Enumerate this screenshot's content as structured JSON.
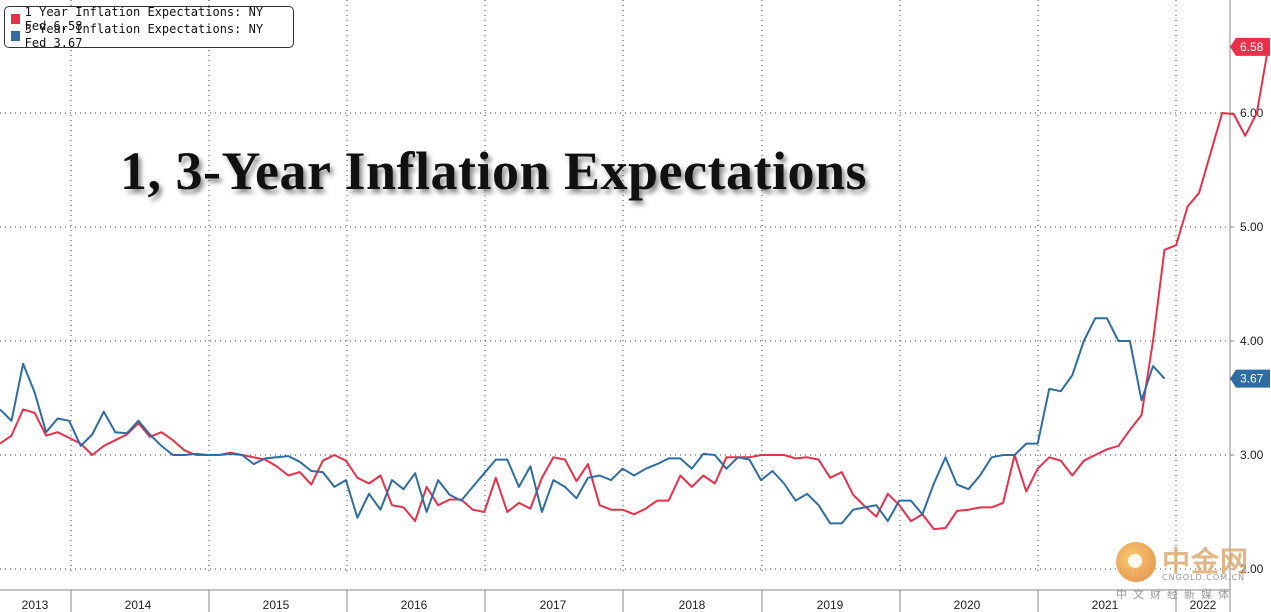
{
  "chart_data": {
    "type": "line",
    "title": "1, 3-Year Inflation Expectations",
    "xlabel": "",
    "ylabel": "",
    "x_start": "2013-06",
    "x_tick_labels": [
      "2013",
      "2014",
      "2015",
      "2016",
      "2017",
      "2018",
      "2019",
      "2020",
      "2021",
      "2022"
    ],
    "y_tick_labels": [
      "2.00",
      "3.00",
      "4.00",
      "5.00",
      "6.00"
    ],
    "ylim": [
      2.0,
      6.58
    ],
    "grid": true,
    "legend_position": "top-left",
    "series": [
      {
        "name": "1 Year Inflation Expectations: NY Fed",
        "last_label": "6.58",
        "color": "#e8304a",
        "values": [
          3.1,
          3.17,
          3.4,
          3.37,
          3.17,
          3.2,
          3.15,
          3.1,
          3.0,
          3.08,
          3.13,
          3.18,
          3.28,
          3.16,
          3.2,
          3.13,
          3.04,
          3.0,
          3.0,
          3.0,
          3.02,
          3.0,
          2.98,
          2.96,
          2.9,
          2.82,
          2.85,
          2.74,
          2.95,
          3.0,
          2.95,
          2.8,
          2.75,
          2.82,
          2.56,
          2.54,
          2.42,
          2.72,
          2.56,
          2.61,
          2.61,
          2.52,
          2.5,
          2.8,
          2.5,
          2.58,
          2.53,
          2.8,
          2.98,
          2.96,
          2.77,
          2.92,
          2.56,
          2.52,
          2.52,
          2.48,
          2.53,
          2.6,
          2.6,
          2.82,
          2.72,
          2.82,
          2.75,
          2.98,
          2.98,
          2.98,
          3.0,
          3.0,
          3.0,
          2.97,
          2.98,
          2.96,
          2.8,
          2.85,
          2.65,
          2.55,
          2.46,
          2.66,
          2.56,
          2.42,
          2.48,
          2.35,
          2.36,
          2.51,
          2.52,
          2.54,
          2.54,
          2.58,
          3.0,
          2.68,
          2.88,
          2.98,
          2.95,
          2.82,
          2.95,
          3.0,
          3.05,
          3.08,
          3.22,
          3.35,
          4.0,
          4.8,
          4.84,
          5.18,
          5.3,
          5.65,
          6.0,
          5.99,
          5.8,
          6.0,
          6.58
        ]
      },
      {
        "name": "3 Year Inflation Expectations: NY Fed",
        "last_label": "3.67",
        "color": "#2e6da4",
        "values": [
          3.4,
          3.3,
          3.8,
          3.55,
          3.2,
          3.32,
          3.3,
          3.08,
          3.18,
          3.38,
          3.2,
          3.19,
          3.3,
          3.18,
          3.08,
          3.0,
          3.0,
          3.01,
          3.0,
          3.0,
          3.01,
          3.0,
          2.92,
          2.97,
          2.98,
          2.99,
          2.94,
          2.86,
          2.85,
          2.72,
          2.78,
          2.45,
          2.66,
          2.52,
          2.78,
          2.7,
          2.84,
          2.5,
          2.78,
          2.65,
          2.6,
          2.72,
          2.84,
          2.96,
          2.96,
          2.72,
          2.9,
          2.5,
          2.78,
          2.72,
          2.62,
          2.8,
          2.82,
          2.78,
          2.88,
          2.82,
          2.88,
          2.92,
          2.97,
          2.97,
          2.88,
          3.01,
          3.0,
          2.88,
          2.98,
          2.96,
          2.78,
          2.86,
          2.75,
          2.6,
          2.66,
          2.56,
          2.4,
          2.4,
          2.52,
          2.54,
          2.56,
          2.42,
          2.6,
          2.6,
          2.48,
          2.75,
          2.98,
          2.74,
          2.7,
          2.82,
          2.98,
          3.0,
          3.0,
          3.1,
          3.1,
          3.58,
          3.56,
          3.7,
          4.0,
          4.2,
          4.2,
          4.0,
          4.0,
          3.48,
          3.78,
          3.67
        ]
      }
    ]
  },
  "legend": {
    "items": [
      {
        "label": "1 Year Inflation Expectations: NY Fed 6.58",
        "color": "#e8304a"
      },
      {
        "label": "3 Year Inflation Expectations: NY Fed 3.67",
        "color": "#2e6da4"
      }
    ]
  },
  "watermark": {
    "name": "中金网",
    "url": "CNGOLD.COM.CN",
    "sub": "中文财经新媒体"
  }
}
